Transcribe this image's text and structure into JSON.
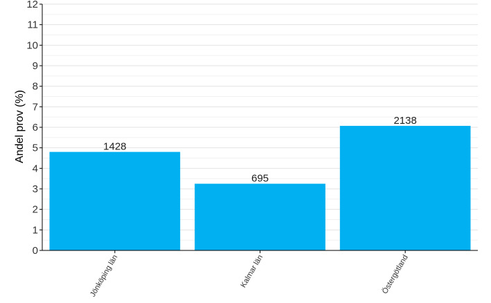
{
  "chart_data": {
    "type": "bar",
    "categories": [
      "Jönköping län",
      "Kalmar län",
      "Östergötland"
    ],
    "values": [
      4.8,
      3.25,
      6.07
    ],
    "data_labels": [
      "1428",
      "695",
      "2138"
    ],
    "ylabel": "Andel prov (%)",
    "xlabel": "",
    "ylim": [
      0,
      12
    ],
    "yticks": [
      "0",
      "1",
      "2",
      "3",
      "4",
      "5",
      "6",
      "7",
      "8",
      "9",
      "10",
      "11",
      "12"
    ],
    "bar_color": "#00b0f0",
    "grid": true
  }
}
